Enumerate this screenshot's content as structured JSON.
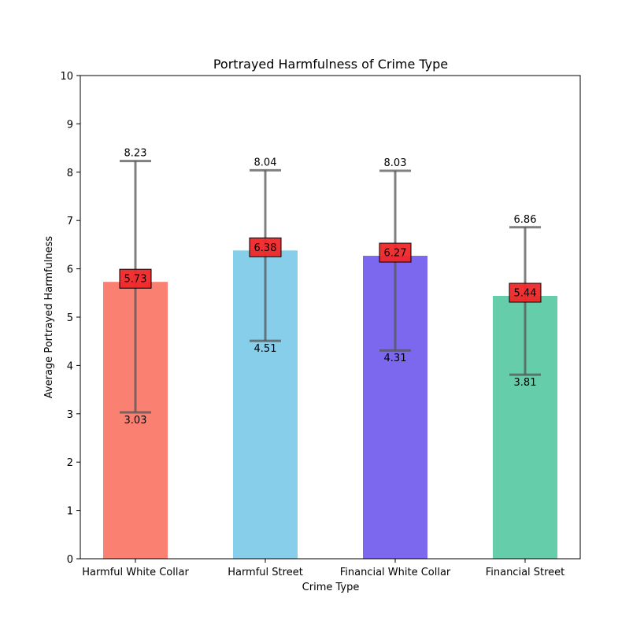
{
  "chart_data": {
    "type": "bar",
    "title": "Portrayed Harmfulness of Crime Type",
    "xlabel": "Crime Type",
    "ylabel": "Average Portrayed Harmfulness",
    "ylim": [
      0,
      10
    ],
    "yticks": [
      0,
      1,
      2,
      3,
      4,
      5,
      6,
      7,
      8,
      9,
      10
    ],
    "grid": false,
    "categories": [
      "Harmful White Collar",
      "Harmful Street",
      "Financial White Collar",
      "Financial Street"
    ],
    "values": [
      5.73,
      6.38,
      6.27,
      5.44
    ],
    "value_labels": [
      "5.73",
      "6.38",
      "6.27",
      "5.44"
    ],
    "error_upper": [
      8.23,
      8.04,
      8.03,
      6.86
    ],
    "error_upper_labels": [
      "8.23",
      "8.04",
      "8.03",
      "6.86"
    ],
    "error_lower": [
      3.03,
      4.51,
      4.31,
      3.81
    ],
    "error_lower_labels": [
      "3.03",
      "4.51",
      "4.31",
      "3.81"
    ],
    "colors": [
      "#fa8072",
      "#87ceeb",
      "#7b68ee",
      "#66cdaa"
    ],
    "value_box_color": "#f0272a",
    "errorbar_color": "#555555"
  }
}
